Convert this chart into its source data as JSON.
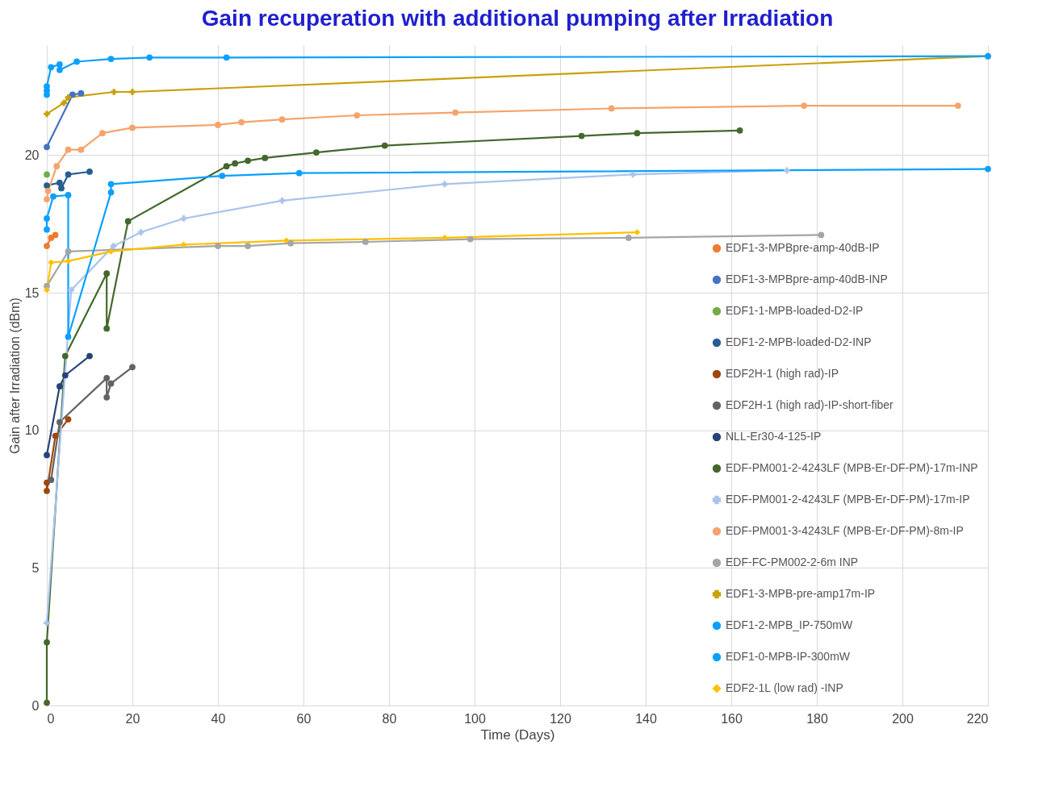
{
  "chart_data": {
    "type": "line",
    "title": "Gain recuperation with additional pumping after Irradiation",
    "xlabel": "Time (Days)",
    "ylabel": "Gain after Irradiation (dBm)",
    "xlim": [
      0,
      220
    ],
    "xticks": [
      0,
      20,
      40,
      60,
      80,
      100,
      120,
      140,
      160,
      180,
      200,
      220
    ],
    "ylim": [
      0,
      24
    ],
    "yticks": [
      0,
      5,
      10,
      15,
      20
    ],
    "grid": true,
    "legend": "bottom right",
    "line_style": "solid",
    "series": [
      {
        "name": "EDF1-3-MPBpre-amp-40dB-IP",
        "color": "#ed7d31",
        "marker": "circle",
        "x": [
          0,
          1,
          2
        ],
        "values": [
          16.7,
          17.0,
          17.1
        ]
      },
      {
        "name": "EDF1-3-MPBpre-amp-40dB-INP",
        "color": "#4472c4",
        "marker": "circle",
        "x": [
          0,
          6,
          8
        ],
        "values": [
          20.3,
          22.2,
          22.25
        ]
      },
      {
        "name": "EDF1-1-MPB-loaded-D2-IP",
        "color": "#70ad47",
        "marker": "circle",
        "x": [
          0
        ],
        "values": [
          19.3
        ]
      },
      {
        "name": "EDF1-2-MPB-loaded-D2-INP",
        "color": "#255e91",
        "marker": "circle",
        "x": [
          0,
          3,
          3.4,
          5,
          10
        ],
        "values": [
          18.9,
          19.0,
          18.8,
          19.3,
          19.4
        ]
      },
      {
        "name": "EDF2H-1 (high rad)-IP",
        "color": "#9e480e",
        "marker": "circle",
        "x": [
          0,
          0,
          2,
          5
        ],
        "values": [
          8.1,
          7.8,
          9.8,
          10.4
        ]
      },
      {
        "name": "EDF2H-1 (high rad)-IP-short-fiber",
        "color": "#636363",
        "marker": "circle",
        "x": [
          1,
          3,
          14,
          14,
          15,
          20
        ],
        "values": [
          8.2,
          10.3,
          11.9,
          11.2,
          11.7,
          12.3
        ]
      },
      {
        "name": "NLL-Er30-4-125-IP",
        "color": "#264478",
        "marker": "circle",
        "x": [
          0,
          3,
          4.3,
          10
        ],
        "values": [
          9.1,
          11.6,
          12.0,
          12.7
        ]
      },
      {
        "name": "EDF-PM001-2-4243LF (MPB-Er-DF-PM)-17m-INP",
        "color": "#43682b",
        "marker": "circle",
        "x": [
          0,
          0,
          4.3,
          14,
          14,
          19,
          42,
          44,
          47,
          51,
          63,
          79,
          125,
          138,
          162
        ],
        "values": [
          0.1,
          2.3,
          12.7,
          15.7,
          13.7,
          17.6,
          19.6,
          19.7,
          19.8,
          19.9,
          20.1,
          20.35,
          20.7,
          20.8,
          20.9
        ]
      },
      {
        "name": "EDF-PM001-2-4243LF (MPB-Er-DF-PM)-17m-IP",
        "color": "#a9c4eb",
        "marker": "cross",
        "x": [
          0,
          5.7,
          15.6,
          22,
          32,
          55,
          93,
          137,
          173
        ],
        "values": [
          3.0,
          15.1,
          16.7,
          17.2,
          17.7,
          18.35,
          18.95,
          19.3,
          19.45
        ]
      },
      {
        "name": "EDF-PM001-3-4243LF (MPB-Er-DF-PM)-8m-IP",
        "color": "#f4a46c",
        "marker": "circle",
        "x": [
          0,
          0.3,
          2.3,
          5,
          8,
          13,
          20,
          40,
          45.5,
          55,
          72.5,
          95.5,
          132,
          177,
          213
        ],
        "values": [
          18.4,
          18.7,
          19.6,
          20.2,
          20.2,
          20.8,
          21.0,
          21.1,
          21.2,
          21.3,
          21.45,
          21.55,
          21.7,
          21.8,
          21.8
        ]
      },
      {
        "name": "EDF-FC-PM002-2-6m INP",
        "color": "#a5a5a5",
        "marker": "circle",
        "x": [
          0,
          5,
          40,
          47,
          57,
          74.5,
          99,
          136,
          181
        ],
        "values": [
          15.25,
          16.5,
          16.7,
          16.7,
          16.8,
          16.85,
          16.95,
          17.0,
          17.1
        ]
      },
      {
        "name": "EDF1-3-MPB-pre-amp17m-IP",
        "color": "#c9a00a",
        "marker": "cross",
        "x": [
          0,
          4,
          5,
          15.7,
          20,
          220
        ],
        "values": [
          21.5,
          21.9,
          22.1,
          22.3,
          22.3,
          23.6
        ]
      },
      {
        "name": "EDF1-2-MPB_IP-750mW",
        "color": "#0aa0ff",
        "marker": "circle",
        "x": [
          0,
          0,
          1.5,
          5,
          5,
          15,
          15,
          41,
          59,
          220
        ],
        "values": [
          17.3,
          17.7,
          18.5,
          18.55,
          13.4,
          18.65,
          18.95,
          19.25,
          19.35,
          19.5
        ]
      },
      {
        "name": "EDF1-0-MPB-IP-300mW",
        "color": "#0aa0ff",
        "marker": "circle",
        "x": [
          0,
          0,
          0,
          1,
          3,
          3,
          7,
          15,
          24,
          42,
          220
        ],
        "values": [
          22.2,
          22.35,
          22.5,
          23.2,
          23.3,
          23.1,
          23.4,
          23.5,
          23.55,
          23.55,
          23.6
        ]
      },
      {
        "name": "EDF2-1L (low rad) -INP",
        "color": "#ffc000",
        "marker": "diamond",
        "x": [
          0,
          1,
          5,
          15,
          32,
          56,
          93,
          138
        ],
        "values": [
          15.1,
          16.1,
          16.15,
          16.5,
          16.75,
          16.9,
          17.0,
          17.2
        ]
      }
    ]
  }
}
